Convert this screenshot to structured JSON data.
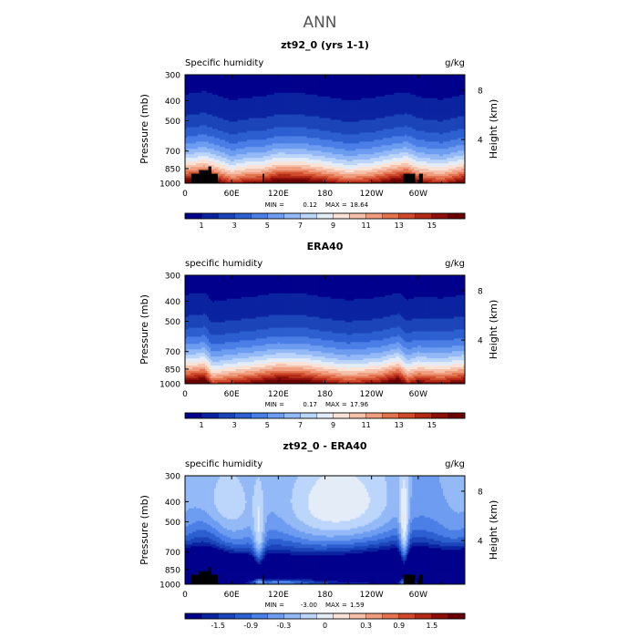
{
  "figure_title": "ANN",
  "chart_data": [
    {
      "type": "heatmap",
      "panel_title": "zt92_0 (yrs 1-1)",
      "variable_label": "Specific humidity",
      "units": "g/kg",
      "ylabel": "Pressure (mb)",
      "ylabel_right": "Height (km)",
      "x_ticks": [
        "0",
        "60E",
        "120E",
        "180",
        "120W",
        "60W"
      ],
      "y_ticks": [
        "300",
        "400",
        "500",
        "700",
        "850",
        "1000"
      ],
      "y_right_ticks": [
        "8",
        "4"
      ],
      "min_label": "MIN =",
      "min_value": "0.12",
      "max_label": "MAX =",
      "max_value": "18.64",
      "colorbar_labels": [
        "1",
        "3",
        "5",
        "7",
        "9",
        "11",
        "13",
        "15"
      ],
      "colorbar_colors": [
        "#00008c",
        "#0a23a0",
        "#1a44b8",
        "#2c5fd0",
        "#4a7fe6",
        "#6d9cf0",
        "#93b9f6",
        "#bcd5fa",
        "#e4ecf8",
        "#fbe2d6",
        "#f6c1aa",
        "#f09c7e",
        "#e2734f",
        "#cf4a2c",
        "#b22a16",
        "#8c0f0a",
        "#6a0000"
      ],
      "x_range_deg": [
        0,
        360
      ],
      "p_range_mb": [
        300,
        1000
      ],
      "surface_p_mb": 1000,
      "top_value": 0.5,
      "value_range": [
        0,
        17
      ],
      "humidity_profile": [
        {
          "lon": 0,
          "amp": 1.0
        },
        {
          "lon": 25,
          "amp": 1.1
        },
        {
          "lon": 40,
          "amp": 0.98
        },
        {
          "lon": 60,
          "amp": 0.82
        },
        {
          "lon": 80,
          "amp": 0.9
        },
        {
          "lon": 100,
          "amp": 0.92
        },
        {
          "lon": 120,
          "amp": 1.05
        },
        {
          "lon": 150,
          "amp": 1.03
        },
        {
          "lon": 180,
          "amp": 0.93
        },
        {
          "lon": 210,
          "amp": 0.82
        },
        {
          "lon": 240,
          "amp": 0.88
        },
        {
          "lon": 270,
          "amp": 1.02
        },
        {
          "lon": 285,
          "amp": 1.08
        },
        {
          "lon": 300,
          "amp": 0.92
        },
        {
          "lon": 330,
          "amp": 0.84
        },
        {
          "lon": 360,
          "amp": 1.0
        }
      ],
      "terrain": [
        {
          "lon0": 8,
          "lon1": 18,
          "p": 900
        },
        {
          "lon0": 18,
          "lon1": 30,
          "p": 865
        },
        {
          "lon0": 30,
          "lon1": 34,
          "p": 830
        },
        {
          "lon0": 34,
          "lon1": 42,
          "p": 900
        },
        {
          "lon0": 100,
          "lon1": 102,
          "p": 900
        },
        {
          "lon0": 281,
          "lon1": 296,
          "p": 900
        },
        {
          "lon0": 301,
          "lon1": 306,
          "p": 900
        }
      ]
    },
    {
      "type": "heatmap",
      "panel_title": "ERA40",
      "variable_label": "specific humidity",
      "units": "g/kg",
      "ylabel": "Pressure (mb)",
      "ylabel_right": "Height (km)",
      "x_ticks": [
        "0",
        "60E",
        "120E",
        "180",
        "120W",
        "60W"
      ],
      "y_ticks": [
        "300",
        "400",
        "500",
        "700",
        "850",
        "1000"
      ],
      "y_right_ticks": [
        "8",
        "4"
      ],
      "min_label": "MIN =",
      "min_value": "0.17",
      "max_label": "MAX =",
      "max_value": "17.96",
      "colorbar_labels": [
        "1",
        "3",
        "5",
        "7",
        "9",
        "11",
        "13",
        "15"
      ],
      "colorbar_colors": [
        "#00008c",
        "#0a23a0",
        "#1a44b8",
        "#2c5fd0",
        "#4a7fe6",
        "#6d9cf0",
        "#93b9f6",
        "#bcd5fa",
        "#e4ecf8",
        "#fbe2d6",
        "#f6c1aa",
        "#f09c7e",
        "#e2734f",
        "#cf4a2c",
        "#b22a16",
        "#8c0f0a",
        "#6a0000"
      ],
      "x_range_deg": [
        0,
        360
      ],
      "p_range_mb": [
        300,
        1000
      ],
      "surface_p_mb": 1000,
      "top_value": 0.5,
      "value_range": [
        0,
        17
      ],
      "humidity_profile": [
        {
          "lon": 0,
          "amp": 1.0
        },
        {
          "lon": 25,
          "amp": 1.08
        },
        {
          "lon": 35,
          "amp": 0.8
        },
        {
          "lon": 55,
          "amp": 0.86
        },
        {
          "lon": 90,
          "amp": 0.95
        },
        {
          "lon": 120,
          "amp": 1.06
        },
        {
          "lon": 150,
          "amp": 1.04
        },
        {
          "lon": 180,
          "amp": 0.93
        },
        {
          "lon": 210,
          "amp": 0.84
        },
        {
          "lon": 250,
          "amp": 0.92
        },
        {
          "lon": 275,
          "amp": 1.08
        },
        {
          "lon": 286,
          "amp": 0.85
        },
        {
          "lon": 300,
          "amp": 0.95
        },
        {
          "lon": 330,
          "amp": 0.9
        },
        {
          "lon": 360,
          "amp": 1.0
        }
      ],
      "terrain": []
    },
    {
      "type": "heatmap",
      "panel_title": "zt92_0 - ERA40",
      "variable_label": "specific humidity",
      "units": "g/kg",
      "ylabel": "Pressure (mb)",
      "ylabel_right": "Height (km)",
      "x_ticks": [
        "0",
        "60E",
        "120E",
        "180",
        "120W",
        "60W"
      ],
      "y_ticks": [
        "300",
        "400",
        "500",
        "700",
        "850",
        "1000"
      ],
      "y_right_ticks": [
        "8",
        "4"
      ],
      "min_label": "MIN =",
      "min_value": "-3.00",
      "max_label": "MAX =",
      "max_value": "1.59",
      "colorbar_labels": [
        "-1.5",
        "-0.9",
        "-0.3",
        "0",
        "0.3",
        "0.9",
        "1.5"
      ],
      "colorbar_colors": [
        "#00008c",
        "#0a23a0",
        "#1a44b8",
        "#2c5fd0",
        "#4a7fe6",
        "#6d9cf0",
        "#93b9f6",
        "#bcd5fa",
        "#e4ecf8",
        "#fbe2d6",
        "#f6c1aa",
        "#f09c7e",
        "#e2734f",
        "#cf4a2c",
        "#b22a16",
        "#8c0f0a",
        "#6a0000"
      ],
      "x_range_deg": [
        0,
        360
      ],
      "p_range_mb": [
        300,
        1000
      ],
      "surface_p_mb": 1000,
      "value_range": [
        -2.1,
        2.1
      ],
      "diff_base": -0.35,
      "diff_features": [
        {
          "lon": 15,
          "p": 880,
          "wlon": 40,
          "wp": 110,
          "v": -1.9
        },
        {
          "lon": 60,
          "p": 900,
          "wlon": 50,
          "wp": 120,
          "v": -1.3
        },
        {
          "lon": 160,
          "p": 860,
          "wlon": 90,
          "wp": 130,
          "v": -1.4
        },
        {
          "lon": 230,
          "p": 820,
          "wlon": 60,
          "wp": 150,
          "v": -1.0
        },
        {
          "lon": 320,
          "p": 880,
          "wlon": 50,
          "wp": 130,
          "v": -1.8
        },
        {
          "lon": 25,
          "p": 650,
          "wlon": 20,
          "wp": 250,
          "v": -0.8
        },
        {
          "lon": 110,
          "p": 550,
          "wlon": 35,
          "wp": 350,
          "v": -0.6
        },
        {
          "lon": 300,
          "p": 600,
          "wlon": 40,
          "wp": 300,
          "v": -0.7
        },
        {
          "lon": 190,
          "p": 420,
          "wlon": 80,
          "wp": 120,
          "v": 0.5
        },
        {
          "lon": 40,
          "p": 420,
          "wlon": 30,
          "wp": 100,
          "v": 0.4
        },
        {
          "lon": 282,
          "p": 760,
          "wlon": 4,
          "wp": 300,
          "v": 1.4
        },
        {
          "lon": 95,
          "p": 760,
          "wlon": 5,
          "wp": 260,
          "v": 1.0
        },
        {
          "lon": 30,
          "p": 975,
          "wlon": 25,
          "wp": 25,
          "v": 1.0
        },
        {
          "lon": 115,
          "p": 975,
          "wlon": 30,
          "wp": 25,
          "v": 1.2
        },
        {
          "lon": 300,
          "p": 975,
          "wlon": 20,
          "wp": 25,
          "v": 1.0
        }
      ],
      "terrain": [
        {
          "lon0": 8,
          "lon1": 18,
          "p": 900
        },
        {
          "lon0": 18,
          "lon1": 30,
          "p": 865
        },
        {
          "lon0": 30,
          "lon1": 34,
          "p": 830
        },
        {
          "lon0": 34,
          "lon1": 42,
          "p": 900
        },
        {
          "lon0": 100,
          "lon1": 102,
          "p": 900
        },
        {
          "lon0": 281,
          "lon1": 296,
          "p": 900
        },
        {
          "lon0": 301,
          "lon1": 306,
          "p": 900
        }
      ]
    }
  ]
}
